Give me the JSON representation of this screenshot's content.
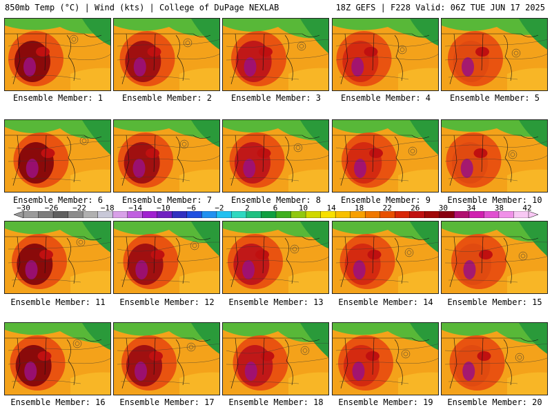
{
  "header": {
    "left": "850mb Temp (°C) | Wind (kts) | College of DuPage NEXLAB",
    "right": "18Z GEFS | F228 Valid: 06Z TUE JUN 17 2025"
  },
  "members": [
    {
      "label": "Ensemble Member: 1"
    },
    {
      "label": "Ensemble Member: 2"
    },
    {
      "label": "Ensemble Member: 3"
    },
    {
      "label": "Ensemble Member: 4"
    },
    {
      "label": "Ensemble Member: 5"
    },
    {
      "label": "Ensemble Member: 6"
    },
    {
      "label": "Ensemble Member: 7"
    },
    {
      "label": "Ensemble Member: 8"
    },
    {
      "label": "Ensemble Member: 9"
    },
    {
      "label": "Ensemble Member: 10"
    },
    {
      "label": "Ensemble Member: 11"
    },
    {
      "label": "Ensemble Member: 12"
    },
    {
      "label": "Ensemble Member: 13"
    },
    {
      "label": "Ensemble Member: 14"
    },
    {
      "label": "Ensemble Member: 15"
    },
    {
      "label": "Ensemble Member: 16"
    },
    {
      "label": "Ensemble Member: 17"
    },
    {
      "label": "Ensemble Member: 18"
    },
    {
      "label": "Ensemble Member: 19"
    },
    {
      "label": "Ensemble Member: 20"
    }
  ],
  "colorbar": {
    "labels": [
      "−30",
      "−26",
      "−22",
      "−18",
      "−14",
      "−10",
      "−6",
      "−2",
      "2",
      "6",
      "10",
      "14",
      "18",
      "22",
      "26",
      "30",
      "34",
      "38",
      "42"
    ],
    "colors": [
      "#9a9a9a",
      "#7d7d7d",
      "#5f5f5f",
      "#8c8c8c",
      "#b0b0b0",
      "#c8c8d8",
      "#d8a0e8",
      "#c060e0",
      "#a020d0",
      "#7020c0",
      "#3030c0",
      "#2050e0",
      "#2090f0",
      "#20c0f0",
      "#30d8c0",
      "#20c080",
      "#10a040",
      "#40b020",
      "#90c810",
      "#d0d800",
      "#f8e000",
      "#f8c000",
      "#f8a000",
      "#f07800",
      "#e85000",
      "#d82808",
      "#c01010",
      "#a00808",
      "#880010",
      "#b01070",
      "#d020b0",
      "#e050d0",
      "#f090e8",
      "#f8c8f4"
    ]
  }
}
